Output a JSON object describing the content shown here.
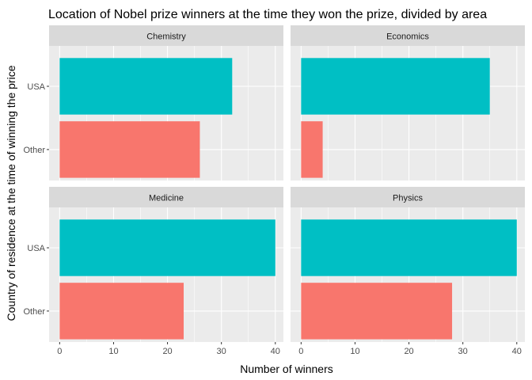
{
  "chart_data": {
    "type": "bar",
    "orientation": "horizontal",
    "title": "Location of Nobel prize winners at the time they won the prize, divided by area",
    "xlabel": "Number of winners",
    "ylabel": "Country of residence at the time of winning the price",
    "categories": [
      "USA",
      "Other"
    ],
    "xlim": [
      0,
      41.5
    ],
    "x_ticks": [
      0,
      10,
      20,
      30,
      40
    ],
    "grid": true,
    "legend": "none",
    "colors": {
      "USA": "#00BFC4",
      "Other": "#F8766D"
    },
    "facets": [
      {
        "name": "Chemistry",
        "values": {
          "USA": 32,
          "Other": 26
        }
      },
      {
        "name": "Economics",
        "values": {
          "USA": 35,
          "Other": 4
        }
      },
      {
        "name": "Medicine",
        "values": {
          "USA": 40,
          "Other": 23
        }
      },
      {
        "name": "Physics",
        "values": {
          "USA": 40,
          "Other": 28
        }
      }
    ]
  }
}
